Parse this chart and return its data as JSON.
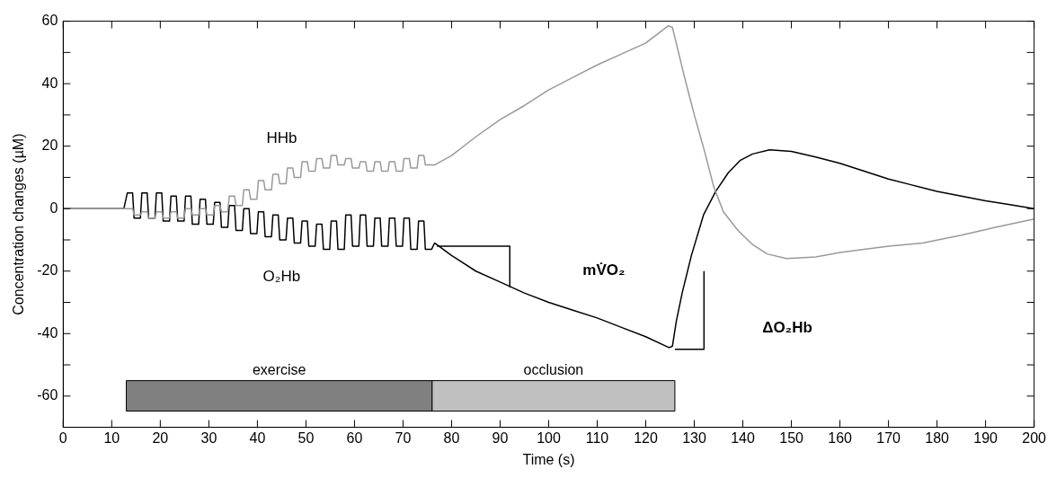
{
  "chart_data": {
    "type": "line",
    "xlabel": "Time (s)",
    "ylabel": "Concentration changes (µM)",
    "xlim": [
      0,
      200
    ],
    "xticks": [
      0,
      10,
      20,
      30,
      40,
      50,
      60,
      70,
      80,
      90,
      100,
      110,
      120,
      130,
      140,
      150,
      160,
      170,
      180,
      190,
      200
    ],
    "ylim": [
      -70,
      60
    ],
    "yticks": [
      -60,
      {
        "value": -50,
        "label": null
      },
      -40,
      {
        "value": -30,
        "label": null
      },
      -20,
      {
        "value": -10,
        "label": null
      },
      0,
      {
        "value": 10,
        "label": null
      },
      20,
      {
        "value": 30,
        "label": null
      },
      40,
      {
        "value": 50,
        "label": null
      },
      60
    ],
    "grid": false,
    "legend": false,
    "marker": "none",
    "line_style": "solid",
    "series": [
      {
        "name": "HHb",
        "color": "#999999",
        "x": [
          0,
          5,
          10,
          12.5,
          13.2,
          14.3,
          14.6,
          15.9,
          16.2,
          17.3,
          17.6,
          18.9,
          19.2,
          20.3,
          20.6,
          21.9,
          22.2,
          23.3,
          23.6,
          24.9,
          25.2,
          26.3,
          26.6,
          27.9,
          28.2,
          29.3,
          29.6,
          30.9,
          31.2,
          32.3,
          32.6,
          33.9,
          34.2,
          35.3,
          35.6,
          36.9,
          37.2,
          38.3,
          38.6,
          39.9,
          40.2,
          41.3,
          41.6,
          42.9,
          43.2,
          44.3,
          44.6,
          45.9,
          46.2,
          47.3,
          47.6,
          48.9,
          49.2,
          50.3,
          50.6,
          51.9,
          52.2,
          53.3,
          53.6,
          54.9,
          55.2,
          56.3,
          56.6,
          57.9,
          58.2,
          59.3,
          59.6,
          60.9,
          61.2,
          62.3,
          62.6,
          63.9,
          64.2,
          65.3,
          65.6,
          66.9,
          67.2,
          68.3,
          68.6,
          69.9,
          70.2,
          71.3,
          71.6,
          72.9,
          73.2,
          74.3,
          74.6,
          75.9,
          76.5,
          80,
          85,
          90,
          95,
          100,
          105,
          110,
          115,
          120,
          124.6,
          125.5,
          128,
          130,
          132,
          134,
          136,
          139,
          142,
          145,
          149,
          155,
          160,
          165,
          170,
          177,
          185,
          192,
          200
        ],
        "values": [
          0,
          0,
          0,
          0,
          0,
          0,
          -2,
          -2,
          -1,
          -1,
          -3,
          -3,
          -1,
          -1,
          -3,
          -3,
          -1,
          -1,
          -3,
          -3,
          0,
          0,
          -2,
          -2,
          0,
          0,
          -2,
          -2,
          1,
          1,
          -1,
          -1,
          4,
          4,
          1,
          1,
          6,
          6,
          3,
          3,
          9,
          9,
          6,
          6,
          11,
          11,
          8,
          8,
          13,
          13,
          10,
          10,
          15,
          15,
          12,
          12,
          16,
          16,
          13,
          13,
          17,
          17,
          14,
          14,
          16,
          16,
          13,
          13,
          15,
          15,
          12,
          12,
          15,
          15,
          12,
          12,
          15,
          15,
          12,
          12,
          16,
          16,
          13,
          13,
          17,
          17,
          14,
          14,
          14,
          17,
          23,
          28.5,
          33,
          38,
          42,
          46,
          49.5,
          53,
          58.5,
          58,
          42,
          30,
          19,
          7,
          -1,
          -7,
          -11.5,
          -14.5,
          -16,
          -15.5,
          -14,
          -13,
          -12,
          -11,
          -8.5,
          -6,
          -3.3
        ]
      },
      {
        "name": "O₂Hb",
        "color": "#000000",
        "x": [
          0,
          5,
          10,
          12.5,
          13.2,
          14.3,
          14.6,
          15.9,
          16.2,
          17.3,
          17.6,
          18.9,
          19.2,
          20.3,
          20.6,
          21.9,
          22.2,
          23.3,
          23.6,
          24.9,
          25.2,
          26.3,
          26.6,
          27.9,
          28.2,
          29.3,
          29.6,
          30.9,
          31.2,
          32.3,
          32.6,
          33.9,
          34.2,
          35.3,
          35.6,
          36.9,
          37.2,
          38.3,
          38.6,
          39.9,
          40.2,
          41.3,
          41.6,
          42.9,
          43.2,
          44.3,
          44.6,
          45.9,
          46.2,
          47.3,
          47.6,
          48.9,
          49.2,
          50.3,
          50.6,
          51.9,
          52.2,
          53.3,
          53.6,
          54.9,
          55.2,
          56.3,
          56.6,
          57.9,
          58.2,
          59.3,
          59.6,
          60.9,
          61.2,
          62.3,
          62.6,
          63.9,
          64.2,
          65.3,
          65.6,
          66.9,
          67.2,
          68.3,
          68.6,
          69.9,
          70.2,
          71.3,
          71.6,
          72.9,
          73.2,
          74.3,
          74.6,
          75.9,
          76.5,
          80,
          85,
          90,
          95,
          100,
          105,
          110,
          115,
          120,
          124.8,
          125.5,
          126.3,
          127.5,
          129.4,
          131.9,
          134.4,
          137,
          139.5,
          142,
          145.5,
          150,
          155,
          160,
          165,
          170,
          175,
          180,
          185,
          190,
          195,
          200
        ],
        "values": [
          0,
          0,
          0,
          0,
          5,
          5,
          -3,
          -3,
          5,
          5,
          -3,
          -3,
          5,
          5,
          -4,
          -4,
          4,
          4,
          -4,
          -4,
          4,
          4,
          -5,
          -5,
          3,
          3,
          -5,
          -5,
          2,
          2,
          -6,
          -6,
          1,
          1,
          -7,
          -7,
          0,
          0,
          -8,
          -8,
          -1,
          -1,
          -9,
          -9,
          -2,
          -2,
          -10,
          -10,
          -3,
          -3,
          -11,
          -11,
          -4,
          -4,
          -12,
          -12,
          -5,
          -5,
          -13,
          -13,
          -4,
          -4,
          -13,
          -13,
          -2,
          -2,
          -12,
          -12,
          -2,
          -2,
          -12,
          -12,
          -3,
          -3,
          -12,
          -12,
          -3,
          -3,
          -12,
          -12,
          -3,
          -3,
          -13,
          -13,
          -4,
          -4,
          -13,
          -13,
          -11,
          -15,
          -20,
          -23.5,
          -27,
          -30,
          -32.5,
          -35,
          -38,
          -41,
          -44.5,
          -44,
          -36,
          -27,
          -15,
          -2,
          5.5,
          11.5,
          15.5,
          17.5,
          18.8,
          18.3,
          16.5,
          14.5,
          12,
          9.5,
          7.5,
          5.5,
          4,
          2.5,
          1.3,
          0
        ]
      },
      {
        "color": "#000000",
        "x": [
          77,
          92,
          92
        ],
        "values": [
          -12,
          -12,
          -25
        ]
      },
      {
        "color": "#000000",
        "x": [
          126,
          132,
          132
        ],
        "values": [
          -45,
          -45,
          -20
        ]
      }
    ],
    "bands": [
      {
        "axis": "x",
        "from": 13,
        "to": 76,
        "label": "exercise",
        "color": "#808080"
      },
      {
        "axis": "x",
        "from": 76,
        "to": 126,
        "label": "occlusion",
        "color": "#c0c0c0"
      }
    ],
    "annotations": [
      "mV̇O₂",
      "ΔO₂Hb"
    ]
  }
}
